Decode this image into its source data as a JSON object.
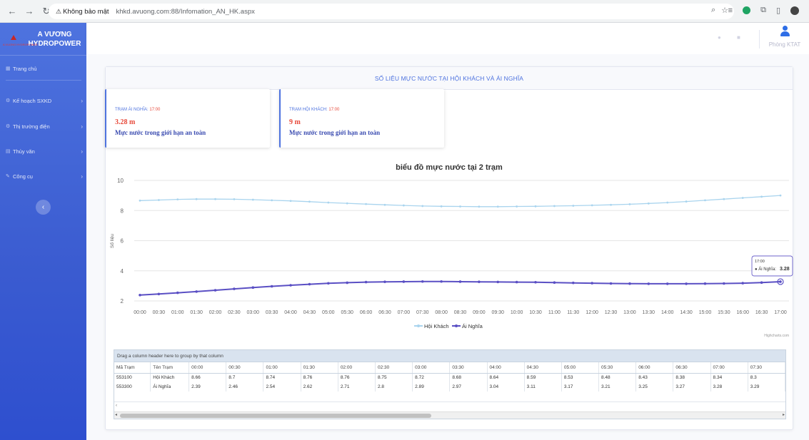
{
  "browser": {
    "warning": "Không bảo mật",
    "url": "khkd.avuong.com:88/Infomation_AN_HK.aspx"
  },
  "sidebar": {
    "brand_line1": "A VƯƠNG",
    "brand_line2": "HYDROPOWER",
    "logo_text": "A VUONG HYDROPOWER",
    "items": [
      {
        "label": "Trang chủ",
        "icon": "dashboard-icon"
      },
      {
        "label": "Kế hoạch SXKD",
        "icon": "gear-icon"
      },
      {
        "label": "Thị trường điện",
        "icon": "gear-icon"
      },
      {
        "label": "Thủy văn",
        "icon": "table-icon"
      },
      {
        "label": "Công cụ",
        "icon": "wrench-icon"
      }
    ],
    "toggle": "‹"
  },
  "topbar": {
    "user_name": "Phòng KTAT"
  },
  "card": {
    "title": "SỐ LIỆU MỰC NƯỚC TẠI HỘI KHÁCH VÀ ÁI NGHĨA"
  },
  "stations": [
    {
      "label": "TRẠM ÁI NGHĨA: ",
      "time": "17:00",
      "value": "3.28 m",
      "message": "Mực nước trong giới hạn an toàn"
    },
    {
      "label": "TRẠM HỘI KHÁCH: ",
      "time": "17:00",
      "value": "9 m",
      "message": "Mực nước trong giới hạn an toàn"
    }
  ],
  "chart_data": {
    "type": "line",
    "title": "biểu đồ mực nước tại 2 trạm",
    "ylabel": "Số liệu",
    "xlabel": "",
    "ylim": [
      2,
      10
    ],
    "yticks": [
      2,
      4,
      6,
      8,
      10
    ],
    "grid": true,
    "legend": "bottom-center",
    "credits": "Highcharts.com",
    "categories": [
      "00:00",
      "00:30",
      "01:00",
      "01:30",
      "02:00",
      "02:30",
      "03:00",
      "03:30",
      "04:00",
      "04:30",
      "05:00",
      "05:30",
      "06:00",
      "06:30",
      "07:00",
      "07:30",
      "08:00",
      "08:30",
      "09:00",
      "09:30",
      "10:00",
      "10:30",
      "11:00",
      "11:30",
      "12:00",
      "12:30",
      "13:00",
      "13:30",
      "14:00",
      "14:30",
      "15:00",
      "15:30",
      "16:00",
      "16:30",
      "17:00"
    ],
    "series": [
      {
        "name": "Hội Khách",
        "color": "#a9d4ee",
        "values": [
          8.66,
          8.7,
          8.74,
          8.76,
          8.76,
          8.75,
          8.72,
          8.68,
          8.64,
          8.59,
          8.53,
          8.48,
          8.43,
          8.38,
          8.34,
          8.3,
          8.28,
          8.27,
          8.26,
          8.26,
          8.27,
          8.28,
          8.3,
          8.32,
          8.35,
          8.38,
          8.42,
          8.47,
          8.53,
          8.6,
          8.68,
          8.76,
          8.84,
          8.92,
          9.0
        ]
      },
      {
        "name": "Ái Nghĩa",
        "color": "#5a4fc4",
        "values": [
          2.39,
          2.46,
          2.54,
          2.62,
          2.71,
          2.8,
          2.89,
          2.97,
          3.04,
          3.11,
          3.17,
          3.21,
          3.25,
          3.27,
          3.28,
          3.29,
          3.29,
          3.28,
          3.27,
          3.26,
          3.25,
          3.24,
          3.22,
          3.2,
          3.18,
          3.16,
          3.15,
          3.14,
          3.14,
          3.14,
          3.15,
          3.16,
          3.18,
          3.22,
          3.28
        ]
      }
    ],
    "tooltip": {
      "time": "17:00",
      "series": "Ái Nghĩa",
      "value": "3.28"
    }
  },
  "grid": {
    "group_hint": "Drag a column header here to group by that column",
    "columns": [
      "Mã Trạm",
      "Tên Trạm",
      "00:00",
      "00:30",
      "01:00",
      "01:30",
      "02:00",
      "02:30",
      "03:00",
      "03:30",
      "04:00",
      "04:30",
      "05:00",
      "05:30",
      "06:00",
      "06:30",
      "07:00",
      "07:30"
    ],
    "rows": [
      [
        "553100",
        "Hội Khách",
        "8.66",
        "8.7",
        "8.74",
        "8.76",
        "8.76",
        "8.75",
        "8.72",
        "8.68",
        "8.64",
        "8.59",
        "8.53",
        "8.48",
        "8.43",
        "8.38",
        "8.34",
        "8.3"
      ],
      [
        "553300",
        "Ái Nghĩa",
        "2.39",
        "2.46",
        "2.54",
        "2.62",
        "2.71",
        "2.8",
        "2.89",
        "2.97",
        "3.04",
        "3.11",
        "3.17",
        "3.21",
        "3.25",
        "3.27",
        "3.28",
        "3.29"
      ]
    ],
    "pager_arrow": "‹",
    "scroll_left": "◂",
    "scroll_right": "▸"
  }
}
